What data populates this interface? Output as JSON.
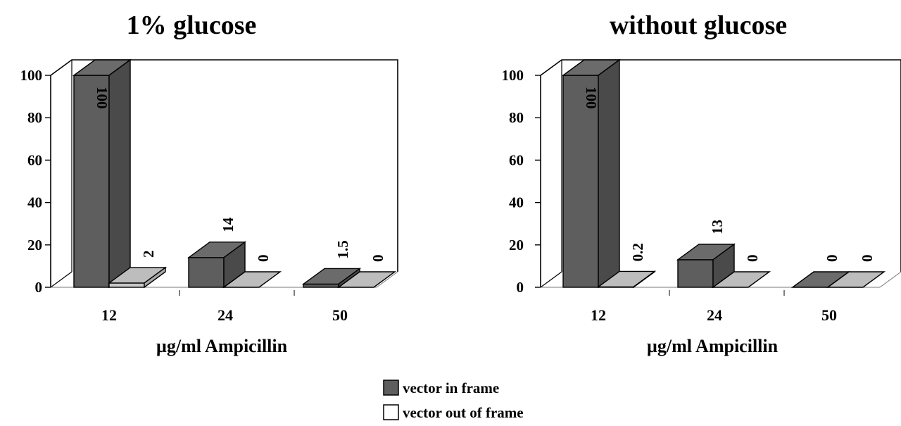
{
  "chart_data": [
    {
      "type": "bar",
      "title": "1% glucose",
      "xlabel": "µg/ml Ampicillin",
      "ylabel": "",
      "ylim": [
        0,
        100
      ],
      "yticks": [
        "0",
        "20",
        "40",
        "60",
        "80",
        "100"
      ],
      "categories": [
        "12",
        "24",
        "50"
      ],
      "series": [
        {
          "name": "vector in frame",
          "values": [
            100,
            14,
            1.5
          ],
          "labels": [
            "100",
            "14",
            "1.5"
          ]
        },
        {
          "name": "vector out of frame",
          "values": [
            2,
            0,
            0
          ],
          "labels": [
            "2",
            "0",
            "0"
          ]
        }
      ]
    },
    {
      "type": "bar",
      "title": "without glucose",
      "xlabel": "µg/ml Ampicillin",
      "ylabel": "",
      "ylim": [
        0,
        100
      ],
      "yticks": [
        "0",
        "20",
        "40",
        "60",
        "80",
        "100"
      ],
      "categories": [
        "12",
        "24",
        "50"
      ],
      "series": [
        {
          "name": "vector in frame",
          "values": [
            100,
            13,
            0
          ],
          "labels": [
            "100",
            "13",
            "0"
          ]
        },
        {
          "name": "vector out of frame",
          "values": [
            0.2,
            0,
            0
          ],
          "labels": [
            "0.2",
            "0",
            "0"
          ]
        }
      ]
    }
  ],
  "legend": {
    "placement": "bottom-center",
    "items": [
      {
        "label": "vector in frame",
        "color": "#5e5e5e"
      },
      {
        "label": "vector out of frame",
        "color": "#ffffff"
      }
    ]
  },
  "colors": {
    "in_front": "#5e5e5e",
    "in_side": "#4a4a4a",
    "in_top": "#6b6b6b",
    "out_front": "#c8c8c8",
    "out_top": "#bdbdbd",
    "out_side": "#a8a8a8"
  }
}
